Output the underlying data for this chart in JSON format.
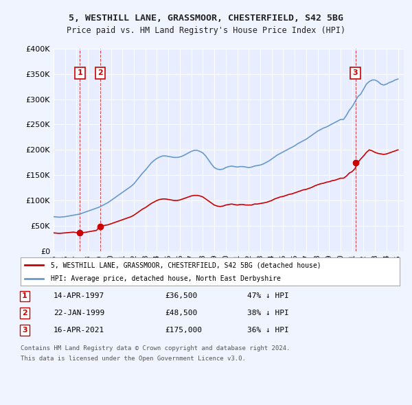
{
  "title": "5, WESTHILL LANE, GRASSMOOR, CHESTERFIELD, S42 5BG",
  "subtitle": "Price paid vs. HM Land Registry's House Price Index (HPI)",
  "xlabel": "",
  "ylabel": "",
  "ylim": [
    0,
    400000
  ],
  "xlim_start": 1995.0,
  "xlim_end": 2025.5,
  "yticks": [
    0,
    50000,
    100000,
    150000,
    200000,
    250000,
    300000,
    350000,
    400000
  ],
  "ytick_labels": [
    "£0",
    "£50K",
    "£100K",
    "£150K",
    "£200K",
    "£250K",
    "£300K",
    "£350K",
    "£400K"
  ],
  "xticks": [
    1995,
    1996,
    1997,
    1998,
    1999,
    2000,
    2001,
    2002,
    2003,
    2004,
    2005,
    2006,
    2007,
    2008,
    2009,
    2010,
    2011,
    2012,
    2013,
    2014,
    2015,
    2016,
    2017,
    2018,
    2019,
    2020,
    2021,
    2022,
    2023,
    2024,
    2025
  ],
  "bg_color": "#f0f4ff",
  "plot_bg_color": "#e8eeff",
  "grid_color": "#ffffff",
  "red_line_color": "#cc0000",
  "blue_line_color": "#6699cc",
  "sale_marker_color": "#cc0000",
  "sale_box_color": "#cc0000",
  "sale_box_text_color": "#cc0000",
  "sales": [
    {
      "year": 1997.29,
      "price": 36500,
      "label": "1"
    },
    {
      "year": 1999.07,
      "price": 48500,
      "label": "2"
    },
    {
      "year": 2021.29,
      "price": 175000,
      "label": "3"
    }
  ],
  "legend_line1": "5, WESTHILL LANE, GRASSMOOR, CHESTERFIELD, S42 5BG (detached house)",
  "legend_line2": "HPI: Average price, detached house, North East Derbyshire",
  "table_rows": [
    {
      "num": "1",
      "date": "14-APR-1997",
      "price": "£36,500",
      "hpi": "47% ↓ HPI"
    },
    {
      "num": "2",
      "date": "22-JAN-1999",
      "price": "£48,500",
      "hpi": "38% ↓ HPI"
    },
    {
      "num": "3",
      "date": "16-APR-2021",
      "price": "£175,000",
      "hpi": "36% ↓ HPI"
    }
  ],
  "footer1": "Contains HM Land Registry data © Crown copyright and database right 2024.",
  "footer2": "This data is licensed under the Open Government Licence v3.0.",
  "hpi_data_x": [
    1995.0,
    1995.25,
    1995.5,
    1995.75,
    1996.0,
    1996.25,
    1996.5,
    1996.75,
    1997.0,
    1997.25,
    1997.5,
    1997.75,
    1998.0,
    1998.25,
    1998.5,
    1998.75,
    1999.0,
    1999.25,
    1999.5,
    1999.75,
    2000.0,
    2000.25,
    2000.5,
    2000.75,
    2001.0,
    2001.25,
    2001.5,
    2001.75,
    2002.0,
    2002.25,
    2002.5,
    2002.75,
    2003.0,
    2003.25,
    2003.5,
    2003.75,
    2004.0,
    2004.25,
    2004.5,
    2004.75,
    2005.0,
    2005.25,
    2005.5,
    2005.75,
    2006.0,
    2006.25,
    2006.5,
    2006.75,
    2007.0,
    2007.25,
    2007.5,
    2007.75,
    2008.0,
    2008.25,
    2008.5,
    2008.75,
    2009.0,
    2009.25,
    2009.5,
    2009.75,
    2010.0,
    2010.25,
    2010.5,
    2010.75,
    2011.0,
    2011.25,
    2011.5,
    2011.75,
    2012.0,
    2012.25,
    2012.5,
    2012.75,
    2013.0,
    2013.25,
    2013.5,
    2013.75,
    2014.0,
    2014.25,
    2014.5,
    2014.75,
    2015.0,
    2015.25,
    2015.5,
    2015.75,
    2016.0,
    2016.25,
    2016.5,
    2016.75,
    2017.0,
    2017.25,
    2017.5,
    2017.75,
    2018.0,
    2018.25,
    2018.5,
    2018.75,
    2019.0,
    2019.25,
    2019.5,
    2019.75,
    2020.0,
    2020.25,
    2020.5,
    2020.75,
    2021.0,
    2021.25,
    2021.5,
    2021.75,
    2022.0,
    2022.25,
    2022.5,
    2022.75,
    2023.0,
    2023.25,
    2023.5,
    2023.75,
    2024.0,
    2024.25,
    2024.5,
    2024.75,
    2025.0
  ],
  "hpi_data_y": [
    68000,
    67500,
    67000,
    67500,
    68000,
    69000,
    70000,
    71000,
    72000,
    73000,
    75000,
    77000,
    79000,
    81000,
    83000,
    85000,
    87000,
    90000,
    93000,
    96000,
    100000,
    104000,
    108000,
    112000,
    116000,
    120000,
    124000,
    128000,
    133000,
    140000,
    147000,
    154000,
    160000,
    167000,
    174000,
    179000,
    183000,
    186000,
    188000,
    188000,
    187000,
    186000,
    185000,
    185000,
    186000,
    188000,
    191000,
    194000,
    197000,
    199000,
    199000,
    197000,
    194000,
    188000,
    180000,
    172000,
    165000,
    162000,
    161000,
    162000,
    165000,
    167000,
    168000,
    167000,
    166000,
    167000,
    167000,
    166000,
    165000,
    166000,
    168000,
    169000,
    170000,
    172000,
    175000,
    178000,
    182000,
    186000,
    190000,
    193000,
    196000,
    199000,
    202000,
    205000,
    208000,
    212000,
    215000,
    218000,
    221000,
    225000,
    229000,
    233000,
    237000,
    240000,
    243000,
    245000,
    248000,
    251000,
    254000,
    257000,
    260000,
    260000,
    268000,
    278000,
    285000,
    295000,
    305000,
    310000,
    320000,
    330000,
    335000,
    338000,
    338000,
    335000,
    330000,
    328000,
    330000,
    333000,
    335000,
    338000,
    340000
  ],
  "property_data_x": [
    1995.0,
    1995.25,
    1995.5,
    1995.75,
    1996.0,
    1996.25,
    1996.5,
    1996.75,
    1997.0,
    1997.25,
    1997.5,
    1997.75,
    1998.0,
    1998.25,
    1998.5,
    1998.75,
    1999.0,
    1999.25,
    1999.5,
    1999.75,
    2000.0,
    2000.25,
    2000.5,
    2000.75,
    2001.0,
    2001.25,
    2001.5,
    2001.75,
    2002.0,
    2002.25,
    2002.5,
    2002.75,
    2003.0,
    2003.25,
    2003.5,
    2003.75,
    2004.0,
    2004.25,
    2004.5,
    2004.75,
    2005.0,
    2005.25,
    2005.5,
    2005.75,
    2006.0,
    2006.25,
    2006.5,
    2006.75,
    2007.0,
    2007.25,
    2007.5,
    2007.75,
    2008.0,
    2008.25,
    2008.5,
    2008.75,
    2009.0,
    2009.25,
    2009.5,
    2009.75,
    2010.0,
    2010.25,
    2010.5,
    2010.75,
    2011.0,
    2011.25,
    2011.5,
    2011.75,
    2012.0,
    2012.25,
    2012.5,
    2012.75,
    2013.0,
    2013.25,
    2013.5,
    2013.75,
    2014.0,
    2014.25,
    2014.5,
    2014.75,
    2015.0,
    2015.25,
    2015.5,
    2015.75,
    2016.0,
    2016.25,
    2016.5,
    2016.75,
    2017.0,
    2017.25,
    2017.5,
    2017.75,
    2018.0,
    2018.25,
    2018.5,
    2018.75,
    2019.0,
    2019.25,
    2019.5,
    2019.75,
    2020.0,
    2020.25,
    2020.5,
    2020.75,
    2021.0,
    2021.25,
    2021.5,
    2021.75,
    2022.0,
    2022.25,
    2022.5,
    2022.75,
    2023.0,
    2023.25,
    2023.5,
    2023.75,
    2024.0,
    2024.25,
    2024.5,
    2024.75,
    2025.0
  ],
  "property_data_y": [
    36000,
    35500,
    35000,
    35500,
    36000,
    36500,
    37000,
    37500,
    36500,
    36000,
    36500,
    37000,
    38000,
    39000,
    40000,
    41000,
    48500,
    50000,
    51000,
    52000,
    54000,
    56000,
    58000,
    60000,
    62000,
    64000,
    66000,
    68000,
    71000,
    75000,
    79000,
    83000,
    86000,
    90000,
    94000,
    97000,
    100000,
    102000,
    103000,
    103000,
    102000,
    101000,
    100000,
    100000,
    101000,
    103000,
    105000,
    107000,
    109000,
    110000,
    110000,
    109000,
    107000,
    103000,
    99000,
    95000,
    91000,
    89000,
    88000,
    89000,
    91000,
    92000,
    93000,
    92000,
    91000,
    92000,
    92000,
    91000,
    91000,
    91000,
    93000,
    93000,
    94000,
    95000,
    96000,
    98000,
    100000,
    103000,
    105000,
    107000,
    108000,
    110000,
    112000,
    113000,
    115000,
    117000,
    119000,
    121000,
    122000,
    124000,
    126000,
    129000,
    131000,
    133000,
    134000,
    136000,
    137000,
    139000,
    140000,
    142000,
    144000,
    144000,
    148000,
    154000,
    157000,
    163000,
    175000,
    182000,
    188000,
    195000,
    200000,
    198000,
    195000,
    193000,
    192000,
    191000,
    192000,
    194000,
    196000,
    198000,
    200000
  ]
}
